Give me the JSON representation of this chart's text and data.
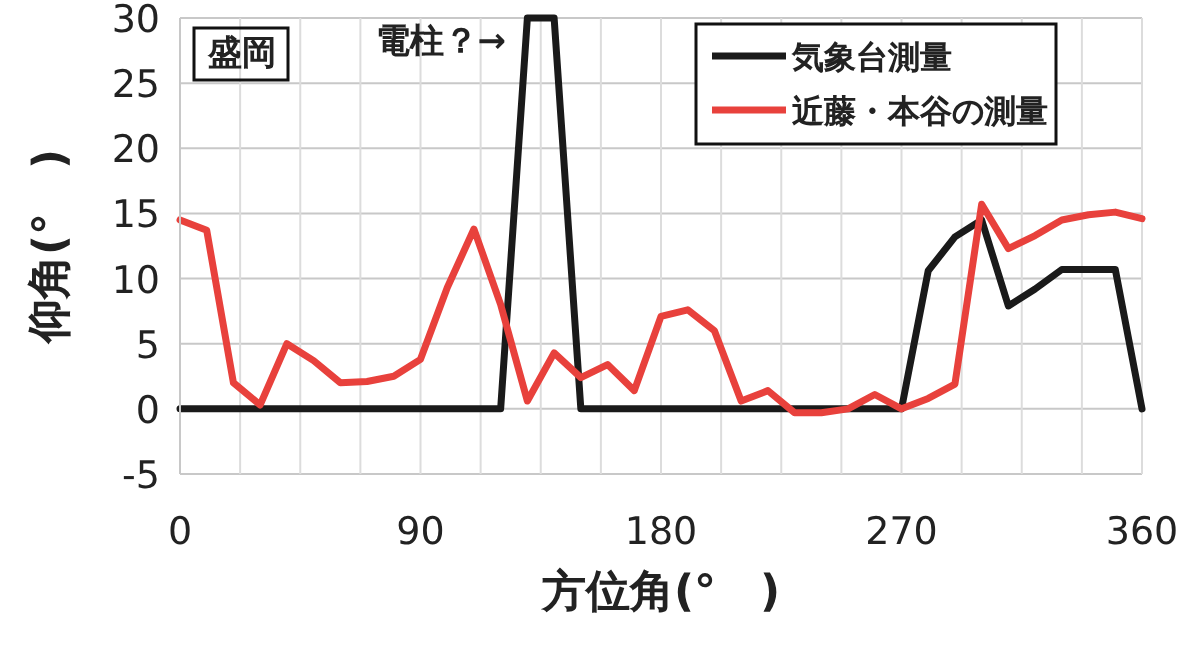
{
  "chart_data": {
    "type": "line",
    "xlabel": "方位角(°　)",
    "ylabel": "仰角(°　)",
    "x": [
      0,
      10,
      20,
      30,
      40,
      50,
      60,
      70,
      80,
      90,
      100,
      110,
      120,
      130,
      140,
      150,
      160,
      170,
      180,
      190,
      200,
      210,
      220,
      230,
      240,
      250,
      260,
      270,
      280,
      290,
      300,
      310,
      320,
      330,
      340,
      350,
      360
    ],
    "series": [
      {
        "name": "気象台測量",
        "color": "#1a1a1a",
        "values": [
          0,
          0,
          0,
          0,
          0,
          0,
          0,
          0,
          0,
          0,
          0,
          0,
          0,
          30,
          30,
          0,
          0,
          0,
          0,
          0,
          0,
          0,
          0,
          0,
          0,
          0,
          0,
          0,
          10.6,
          13.2,
          14.5,
          7.9,
          9.2,
          10.7,
          10.7,
          10.7,
          0
        ]
      },
      {
        "name": "近藤・本谷の測量",
        "color": "#e8413c",
        "values": [
          14.5,
          13.7,
          2.0,
          0.3,
          5.0,
          3.7,
          2.0,
          2.1,
          2.5,
          3.8,
          9.3,
          13.8,
          8.0,
          0.6,
          4.3,
          2.4,
          3.4,
          1.4,
          7.1,
          7.6,
          6.0,
          0.6,
          1.4,
          -0.3,
          -0.3,
          0,
          1.1,
          0,
          0.8,
          1.9,
          15.7,
          12.3,
          13.3,
          14.5,
          14.9,
          15.1,
          14.6
        ]
      }
    ],
    "xlim": [
      0,
      360
    ],
    "xticks": [
      0,
      90,
      180,
      270,
      360
    ],
    "ylim": [
      -5,
      30
    ],
    "yticks": [
      -5,
      0,
      5,
      10,
      15,
      20,
      25,
      30
    ],
    "grid": true,
    "legend": "top right",
    "line_style": "solid",
    "marker": "none",
    "annotations": [
      "盛岡",
      "電柱？→"
    ]
  }
}
